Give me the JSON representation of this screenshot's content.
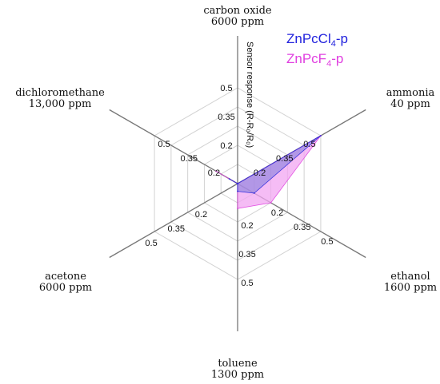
{
  "chart_data": {
    "type": "radar",
    "radial_label": "Sensor response (R-R₀/R₀)",
    "ticks": [
      0.2,
      0.35,
      0.5
    ],
    "tick_labels": [
      "0.2",
      "0.35",
      "0.5"
    ],
    "axes": [
      {
        "name": "carbon oxide",
        "conc": "6000 ppm"
      },
      {
        "name": "ammonia",
        "conc": "40 ppm"
      },
      {
        "name": "ethanol",
        "conc": "1600 ppm"
      },
      {
        "name": "toluene",
        "conc": "1300 ppm"
      },
      {
        "name": "acetone",
        "conc": "6000 ppm"
      },
      {
        "name": "dichloromethane",
        "conc": "13,000 ppm"
      }
    ],
    "series": [
      {
        "name": "ZnPcF4-p",
        "legend_base": "ZnPcF",
        "legend_sub": "4",
        "legend_suffix": "-p",
        "color": "#e040e0",
        "fill": "#f2a6f2",
        "values": [
          0.0,
          0.5,
          0.2,
          0.13,
          0.0,
          0.13
        ]
      },
      {
        "name": "ZnPcCl4-p",
        "legend_base": "ZnPcCl",
        "legend_sub": "4",
        "legend_suffix": "-p",
        "color": "#2222dd",
        "fill": "#7a78d8",
        "values": [
          0.0,
          0.5,
          0.1,
          0.04,
          0.0,
          0.05
        ]
      }
    ]
  }
}
